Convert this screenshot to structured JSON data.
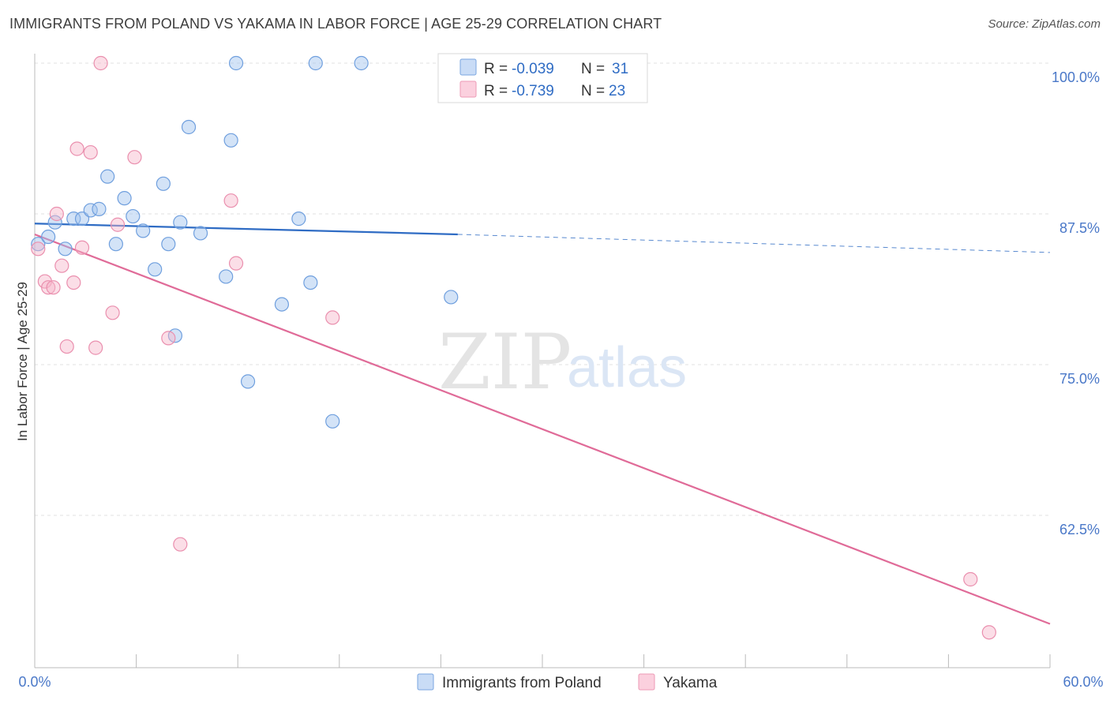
{
  "header": {
    "title": "IMMIGRANTS FROM POLAND VS YAKAMA IN LABOR FORCE | AGE 25-29 CORRELATION CHART",
    "source": "Source: ZipAtlas.com"
  },
  "watermark": {
    "part1": "ZIP",
    "part2": "atlas"
  },
  "chart_data": {
    "type": "scatter",
    "title": "IMMIGRANTS FROM POLAND VS YAKAMA IN LABOR FORCE | AGE 25-29 CORRELATION CHART",
    "xlabel": "",
    "ylabel": "In Labor Force | Age 25-29",
    "xlim": [
      0,
      60
    ],
    "ylim": [
      51,
      102
    ],
    "x_tick_labels": [
      "0.0%",
      "60.0%"
    ],
    "y_ticks": [
      62.5,
      75.0,
      87.5,
      100.0
    ],
    "y_tick_labels": [
      "62.5%",
      "75.0%",
      "87.5%",
      "100.0%"
    ],
    "grid": true,
    "legend": {
      "position": "top-center",
      "entries": [
        {
          "r_label": "R =",
          "r_value": "-0.039",
          "n_label": "N =",
          "n_value": "31"
        },
        {
          "r_label": "R =",
          "r_value": "-0.739",
          "n_label": "N =",
          "n_value": "23"
        }
      ]
    },
    "series": [
      {
        "name": "Immigrants from Poland",
        "color": "#9ec1ee",
        "stroke": "#6f9fde",
        "trend_color": "#2f6cc4",
        "trend": {
          "x0": 0,
          "y0": 86.7,
          "x1": 25,
          "y1": 85.8,
          "dash_to_x": 60,
          "dash_to_y": 84.3
        },
        "points": [
          [
            0.2,
            85.0
          ],
          [
            0.8,
            85.6
          ],
          [
            1.2,
            86.8
          ],
          [
            1.8,
            84.6
          ],
          [
            2.3,
            87.1
          ],
          [
            2.8,
            87.1
          ],
          [
            3.3,
            87.8
          ],
          [
            3.8,
            87.9
          ],
          [
            4.3,
            90.6
          ],
          [
            4.8,
            85.0
          ],
          [
            5.3,
            88.8
          ],
          [
            5.8,
            87.3
          ],
          [
            6.4,
            86.1
          ],
          [
            7.1,
            82.9
          ],
          [
            7.6,
            90.0
          ],
          [
            7.9,
            85.0
          ],
          [
            8.3,
            77.4
          ],
          [
            8.6,
            86.8
          ],
          [
            9.1,
            94.7
          ],
          [
            9.8,
            85.9
          ],
          [
            11.3,
            82.3
          ],
          [
            11.6,
            93.6
          ],
          [
            11.9,
            100.0
          ],
          [
            12.6,
            73.6
          ],
          [
            14.6,
            80.0
          ],
          [
            15.6,
            87.1
          ],
          [
            16.3,
            81.8
          ],
          [
            16.6,
            100.0
          ],
          [
            17.6,
            70.3
          ],
          [
            19.3,
            100.0
          ],
          [
            24.6,
            80.6
          ]
        ]
      },
      {
        "name": "Yakama",
        "color": "#f6b6ca",
        "stroke": "#ea8fae",
        "trend_color": "#e06b98",
        "trend": {
          "x0": 0,
          "y0": 85.8,
          "x1": 60,
          "y1": 53.5
        },
        "points": [
          [
            0.2,
            84.6
          ],
          [
            0.6,
            81.9
          ],
          [
            0.8,
            81.4
          ],
          [
            1.1,
            81.4
          ],
          [
            1.3,
            87.5
          ],
          [
            1.6,
            83.2
          ],
          [
            1.9,
            76.5
          ],
          [
            2.3,
            81.8
          ],
          [
            2.5,
            92.9
          ],
          [
            2.8,
            84.7
          ],
          [
            3.3,
            92.6
          ],
          [
            3.6,
            76.4
          ],
          [
            3.9,
            100.0
          ],
          [
            4.6,
            79.3
          ],
          [
            4.9,
            86.6
          ],
          [
            5.9,
            92.2
          ],
          [
            7.9,
            77.2
          ],
          [
            8.6,
            60.1
          ],
          [
            11.6,
            88.6
          ],
          [
            11.9,
            83.4
          ],
          [
            17.6,
            78.9
          ],
          [
            55.3,
            57.2
          ],
          [
            56.4,
            52.8
          ]
        ]
      }
    ]
  }
}
